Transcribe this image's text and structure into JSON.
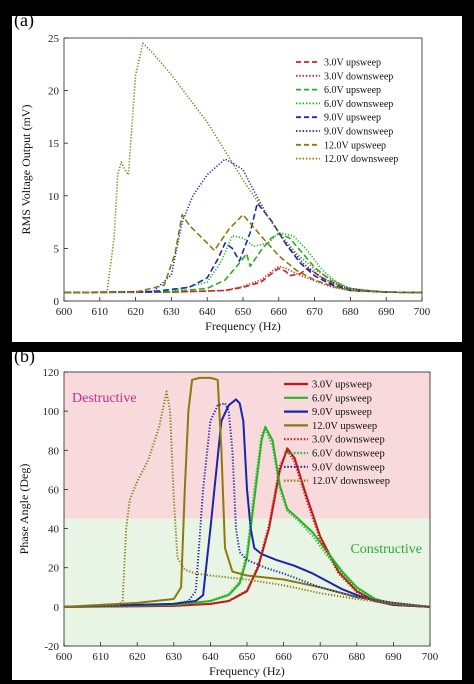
{
  "panels": [
    {
      "label": "(a)",
      "chart_data": {
        "type": "line",
        "xlabel": "Frequency (Hz)",
        "ylabel": "RMS Voltage Output (mV)",
        "xlim": [
          600,
          700
        ],
        "ylim": [
          0,
          25
        ],
        "xticks": [
          600,
          610,
          620,
          630,
          640,
          650,
          660,
          670,
          680,
          690,
          700
        ],
        "yticks": [
          0,
          5,
          10,
          15,
          20,
          25
        ],
        "grid": false,
        "legend": "top-right",
        "series": [
          {
            "name": "3.0V upsweep",
            "color": "#d42020",
            "dash": "dashed",
            "x": [
              600,
              630,
              645,
              650,
              655,
              658,
              660,
              662,
              663,
              666,
              668,
              670,
              675,
              680,
              690,
              700
            ],
            "y": [
              0.8,
              0.85,
              1.0,
              1.3,
              1.8,
              2.6,
              3.1,
              2.8,
              2.4,
              2.6,
              3.1,
              2.7,
              1.6,
              1.0,
              0.85,
              0.8
            ]
          },
          {
            "name": "3.0V downsweep",
            "color": "#d42020",
            "dash": "dotted",
            "x": [
              600,
              630,
              645,
              650,
              655,
              658,
              660,
              662,
              665,
              670,
              675,
              680,
              690,
              700
            ],
            "y": [
              0.8,
              0.85,
              1.0,
              1.4,
              2.0,
              2.8,
              3.3,
              3.1,
              2.6,
              1.9,
              1.3,
              1.0,
              0.85,
              0.8
            ]
          },
          {
            "name": "6.0V upsweep",
            "color": "#20b020",
            "dash": "dashed",
            "x": [
              600,
              630,
              640,
              645,
              649,
              651,
              652,
              655,
              658,
              660,
              663,
              666,
              670,
              675,
              680,
              690,
              700
            ],
            "y": [
              0.8,
              0.9,
              1.2,
              2.0,
              3.6,
              4.5,
              3.3,
              4.8,
              6.0,
              6.4,
              6.0,
              4.8,
              3.2,
              1.8,
              1.1,
              0.85,
              0.8
            ]
          },
          {
            "name": "6.0V downsweep",
            "color": "#20b020",
            "dash": "dotted",
            "x": [
              600,
              630,
              640,
              644,
              647,
              650,
              653,
              657,
              660,
              664,
              668,
              672,
              676,
              680,
              690,
              700
            ],
            "y": [
              0.8,
              0.9,
              1.8,
              3.8,
              6.2,
              6.0,
              5.2,
              5.5,
              6.5,
              6.2,
              4.8,
              3.0,
              1.8,
              1.1,
              0.85,
              0.8
            ]
          },
          {
            "name": "9.0V upsweep",
            "color": "#1a2ab0",
            "dash": "dashed",
            "x": [
              600,
              625,
              635,
              640,
              643,
              645,
              647,
              649,
              652,
              654,
              658,
              662,
              666,
              670,
              675,
              680,
              690,
              700
            ],
            "y": [
              0.8,
              0.9,
              1.3,
              2.2,
              4.0,
              5.5,
              5.0,
              3.8,
              6.5,
              9.3,
              7.6,
              5.4,
              3.6,
              2.4,
              1.5,
              1.0,
              0.85,
              0.8
            ]
          },
          {
            "name": "9.0V downsweep",
            "color": "#1a2ab0",
            "dash": "dotted",
            "x": [
              600,
              625,
              630,
              633,
              636,
              640,
              645,
              650,
              653,
              657,
              662,
              667,
              672,
              678,
              685,
              690,
              700
            ],
            "y": [
              0.8,
              0.9,
              2.5,
              7.5,
              10.0,
              12.0,
              13.5,
              12.5,
              10.5,
              8.0,
              5.5,
              3.5,
              2.2,
              1.3,
              0.95,
              0.85,
              0.8
            ]
          },
          {
            "name": "12.0V upsweep",
            "color": "#8a7a10",
            "dash": "dashed",
            "x": [
              600,
              620,
              628,
              631,
              633,
              635,
              640,
              642,
              646,
              650,
              655,
              660,
              665,
              670,
              675,
              680,
              690,
              700
            ],
            "y": [
              0.8,
              0.85,
              1.5,
              4.5,
              8.2,
              7.2,
              5.5,
              4.8,
              6.8,
              8.2,
              6.2,
              4.3,
              2.9,
              2.0,
              1.4,
              1.0,
              0.85,
              0.8
            ]
          },
          {
            "name": "12.0V downsweep",
            "color": "#8a7a10",
            "dash": "dotted",
            "x": [
              600,
              612,
              614,
              615,
              616,
              617,
              618,
              620,
              622,
              625,
              630,
              640,
              650,
              660,
              665,
              670,
              675,
              680,
              690,
              700
            ],
            "y": [
              0.8,
              0.85,
              6.0,
              12.0,
              13.2,
              12.5,
              12.0,
              21.5,
              24.5,
              23.5,
              21.5,
              17.0,
              11.5,
              6.5,
              4.5,
              3.0,
              2.0,
              1.2,
              0.85,
              0.8
            ]
          }
        ]
      }
    },
    {
      "label": "(b)",
      "chart_data": {
        "type": "line",
        "xlabel": "Frequency (Hz)",
        "ylabel": "Phase Angle (Deg)",
        "xlim": [
          600,
          700
        ],
        "ylim": [
          -20,
          120
        ],
        "xticks": [
          600,
          610,
          620,
          630,
          640,
          650,
          660,
          670,
          680,
          690,
          700
        ],
        "yticks": [
          -20,
          0,
          20,
          40,
          60,
          80,
          100,
          120
        ],
        "grid": false,
        "legend": "top-right",
        "regions": [
          {
            "label": "Destructive",
            "from": 45,
            "to": 120,
            "color": "#f8d9dc",
            "label_color": "#c0308a"
          },
          {
            "label": "Constructive",
            "from": -20,
            "to": 45,
            "color": "#e9f5e4",
            "label_color": "#2aa830"
          }
        ],
        "series": [
          {
            "name": "3.0V upsweep",
            "color": "#c41818",
            "dash": "solid",
            "x": [
              600,
              630,
              640,
              645,
              650,
              653,
              656,
              659,
              661,
              663,
              666,
              670,
              675,
              680,
              685,
              690,
              700
            ],
            "y": [
              0,
              0.5,
              1.5,
              3.0,
              8.0,
              20.0,
              40.0,
              70.0,
              81.0,
              76.0,
              58.0,
              36.0,
              18.0,
              8.0,
              3.0,
              1.0,
              0
            ]
          },
          {
            "name": "6.0V upsweep",
            "color": "#28b428",
            "dash": "solid",
            "x": [
              600,
              630,
              640,
              645,
              648,
              650,
              652,
              654,
              655,
              657,
              659,
              661,
              664,
              668,
              672,
              676,
              680,
              685,
              690,
              700
            ],
            "y": [
              0,
              1.0,
              3.0,
              6.0,
              12.0,
              25.0,
              55.0,
              85.0,
              92.0,
              85.0,
              62.0,
              50.0,
              45.0,
              38.0,
              28.0,
              18.0,
              10.0,
              4.0,
              1.5,
              0
            ]
          },
          {
            "name": "9.0V upsweep",
            "color": "#1a24a8",
            "dash": "solid",
            "x": [
              600,
              630,
              636,
              638,
              640,
              643,
              645,
              647,
              648,
              649,
              650,
              651,
              652,
              654,
              658,
              663,
              668,
              672,
              676,
              680,
              685,
              690,
              700
            ],
            "y": [
              0,
              1.5,
              3.0,
              6.0,
              40.0,
              95.0,
              103.0,
              106.0,
              104.0,
              95.0,
              60.0,
              40.0,
              30.0,
              27.0,
              24.0,
              21.0,
              17.0,
              13.0,
              9.0,
              6.0,
              3.0,
              1.0,
              0
            ]
          },
          {
            "name": "12.0V upsweep",
            "color": "#8a7a10",
            "dash": "solid",
            "x": [
              600,
              620,
              630,
              632,
              633,
              634,
              635,
              637,
              640,
              642,
              643,
              644,
              646,
              650,
              660,
              670,
              680,
              690,
              700
            ],
            "y": [
              0,
              2.0,
              4.0,
              10.0,
              60.0,
              100.0,
              116.0,
              117.0,
              117.0,
              116.0,
              80.0,
              30.0,
              18.0,
              16.0,
              14.0,
              10.0,
              5.0,
              2.0,
              0
            ]
          },
          {
            "name": "3.0V downsweep",
            "color": "#c41818",
            "dash": "dotted",
            "x": [
              600,
              630,
              640,
              645,
              650,
              653,
              656,
              659,
              661,
              663,
              666,
              670,
              675,
              680,
              685,
              690,
              700
            ],
            "y": [
              0,
              0.5,
              1.5,
              3.0,
              8.5,
              21.0,
              42.0,
              72.0,
              80.0,
              74.0,
              56.0,
              34.0,
              17.0,
              7.5,
              3.0,
              1.0,
              0
            ]
          },
          {
            "name": "6.0V downsweep",
            "color": "#28b428",
            "dash": "dotted",
            "x": [
              600,
              630,
              640,
              645,
              648,
              650,
              652,
              654,
              655,
              657,
              659,
              661,
              664,
              668,
              672,
              676,
              680,
              685,
              690,
              700
            ],
            "y": [
              0,
              1.0,
              3.0,
              6.5,
              13.0,
              28.0,
              60.0,
              88.0,
              91.0,
              82.0,
              60.0,
              49.0,
              44.0,
              36.0,
              26.0,
              17.0,
              9.0,
              3.5,
              1.5,
              0
            ]
          },
          {
            "name": "9.0V downsweep",
            "color": "#1a24a8",
            "dash": "dotted",
            "x": [
              600,
              630,
              634,
              636,
              638,
              640,
              642,
              644,
              645,
              646,
              647,
              648,
              650,
              655,
              660,
              670,
              680,
              690,
              700
            ],
            "y": [
              0,
              1.5,
              3.0,
              8.0,
              60.0,
              95.0,
              103.0,
              104.0,
              100.0,
              80.0,
              40.0,
              28.0,
              24.0,
              20.0,
              17.0,
              10.0,
              5.0,
              2.0,
              0
            ]
          },
          {
            "name": "12.0V downsweep",
            "color": "#8a7a10",
            "dash": "dotted",
            "x": [
              600,
              610,
              615,
              616,
              617,
              618,
              620,
              623,
              626,
              628,
              629,
              630,
              631,
              633,
              636,
              640,
              650,
              660,
              670,
              680,
              690,
              700
            ],
            "y": [
              0,
              0.5,
              1.0,
              3.0,
              40.0,
              55.0,
              64.0,
              75.0,
              92.0,
              110.0,
              100.0,
              55.0,
              25.0,
              19.0,
              17.0,
              16.0,
              14.0,
              11.0,
              7.0,
              4.0,
              1.5,
              0
            ]
          }
        ]
      }
    }
  ]
}
